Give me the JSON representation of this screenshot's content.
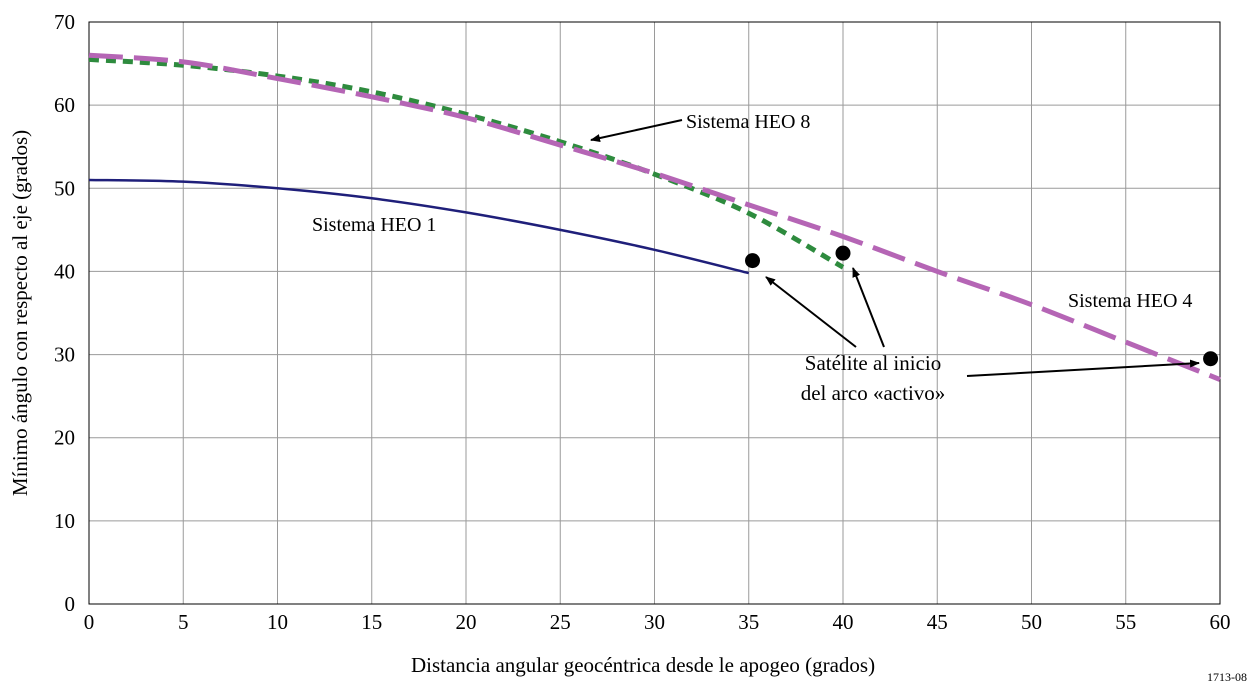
{
  "chart_data": {
    "type": "line",
    "title": "",
    "xlabel": "Distancia angular geocéntrica desde le apogeo (grados)",
    "ylabel": "Mínimo ángulo con respecto al eje (grados)",
    "xlim": [
      0,
      60
    ],
    "ylim": [
      0,
      70
    ],
    "x_ticks": [
      0,
      5,
      10,
      15,
      20,
      25,
      30,
      35,
      40,
      45,
      50,
      55,
      60
    ],
    "y_ticks": [
      0,
      10,
      20,
      30,
      40,
      50,
      60,
      70
    ],
    "grid": true,
    "figure_id": "1713-08",
    "series": [
      {
        "name": "Sistema HEO 1",
        "color": "#1f1f7a",
        "style": "solid",
        "x": [
          0,
          5,
          10,
          15,
          20,
          25,
          30,
          35
        ],
        "y": [
          51,
          50.8,
          50,
          48.8,
          47.1,
          45,
          42.6,
          39.8
        ]
      },
      {
        "name": "Sistema HEO 8",
        "color": "#2e8b3e",
        "style": "dotted",
        "x": [
          0,
          5,
          10,
          15,
          20,
          25,
          30,
          35,
          40
        ],
        "y": [
          65.5,
          64.8,
          63.5,
          61.6,
          58.9,
          55.6,
          51.7,
          47.0,
          40.5
        ]
      },
      {
        "name": "Sistema HEO 4",
        "color": "#b565b5",
        "style": "dashed",
        "x": [
          0,
          5,
          10,
          15,
          20,
          25,
          30,
          35,
          40,
          45,
          50,
          55,
          60
        ],
        "y": [
          66,
          65.2,
          63.2,
          61,
          58.5,
          55.2,
          51.8,
          48,
          44.2,
          40,
          36,
          31.5,
          27
        ]
      }
    ],
    "markers": [
      {
        "x": 35.2,
        "y": 41.3
      },
      {
        "x": 40,
        "y": 42.2
      },
      {
        "x": 59.5,
        "y": 29.5
      }
    ],
    "annotations": {
      "heo1_label": "Sistema HEO 1",
      "heo8_label": "Sistema HEO 8",
      "heo4_label": "Sistema HEO 4",
      "marker_line1": "Satélite al inicio",
      "marker_line2": "del arco «activo»"
    }
  }
}
